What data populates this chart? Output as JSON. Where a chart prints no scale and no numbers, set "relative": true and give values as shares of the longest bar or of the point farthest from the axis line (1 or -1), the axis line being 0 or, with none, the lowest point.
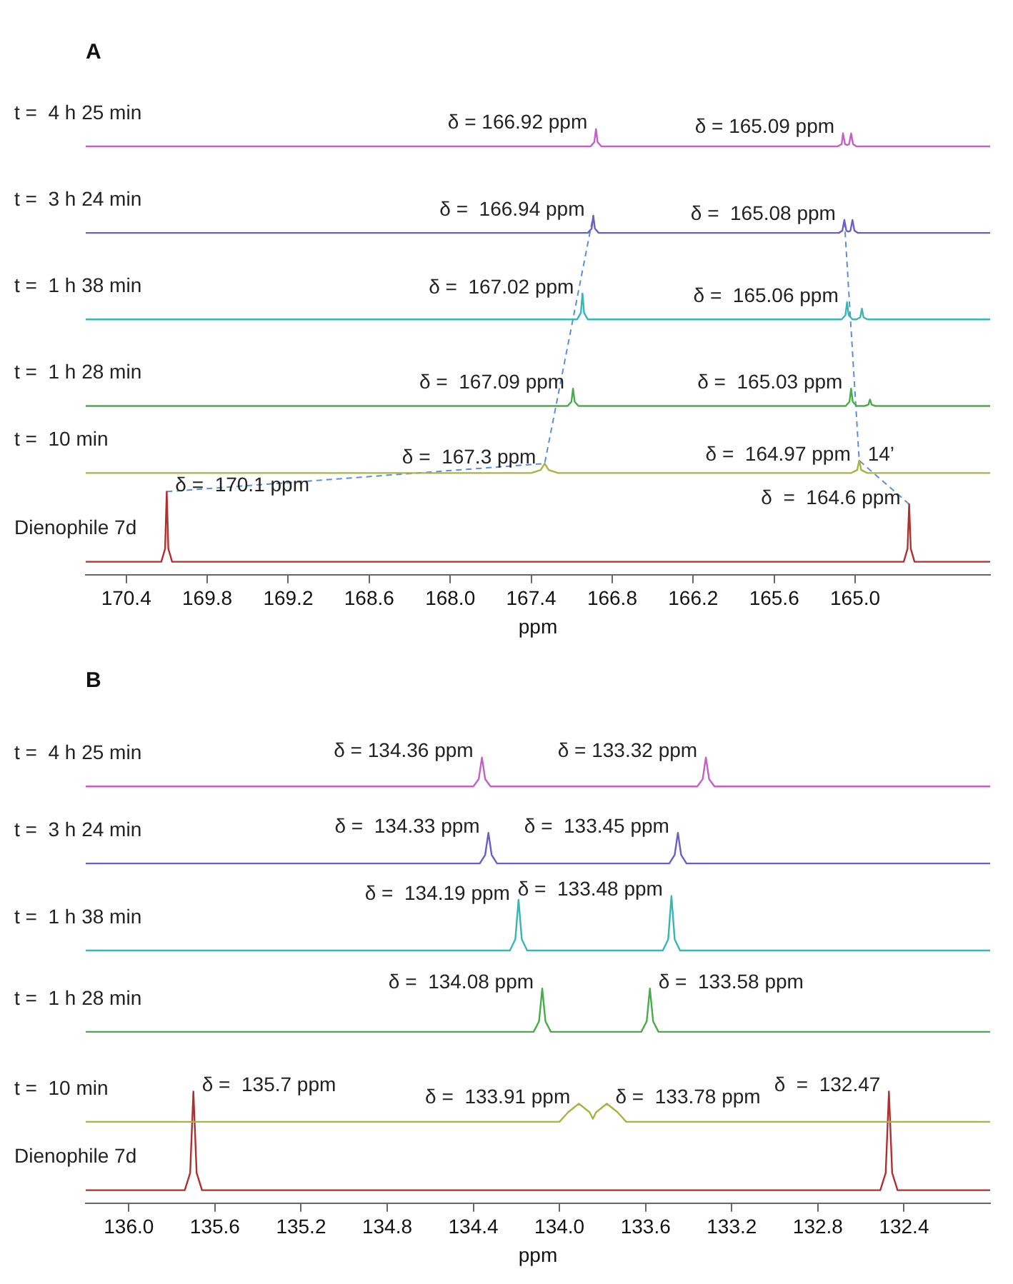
{
  "chart_data": [
    {
      "type": "line",
      "title": "A",
      "xlabel": "ppm",
      "relative": true,
      "xlim": [
        170.7,
        164.0
      ],
      "xticks": [
        170.4,
        169.8,
        169.2,
        168.6,
        {
          "value": 168,
          "label": "168.0"
        },
        167.4,
        166.8,
        166.2,
        165.6,
        {
          "value": 165,
          "label": "165.0"
        }
      ],
      "grid": false,
      "legend": false,
      "tick_labels": "x",
      "marker": "none",
      "line_style": "solid",
      "series": [
        {
          "name": "t =  4 h 25 min",
          "color": "#c65fc6",
          "x": [
            170.7,
            166.96,
            166.932,
            166.92,
            166.908,
            166.88,
            165.13,
            165.1,
            165.09,
            165.075,
            165.06,
            165.045,
            165.03,
            165.015,
            164.99,
            164.0
          ],
          "values": [
            0.96,
            0.96,
            0.97,
            1.0,
            0.97,
            0.96,
            0.96,
            0.965,
            0.99,
            0.965,
            0.963,
            0.965,
            0.99,
            0.965,
            0.96,
            0.96
          ]
        },
        {
          "name": "t =  3 h 24 min",
          "color": "#6a5fc8",
          "x": [
            170.7,
            166.98,
            166.952,
            166.94,
            166.928,
            166.9,
            165.12,
            165.095,
            165.08,
            165.065,
            165.05,
            165.035,
            165.02,
            165.005,
            164.98,
            164.0
          ],
          "values": [
            0.76,
            0.76,
            0.77,
            0.8,
            0.77,
            0.76,
            0.76,
            0.765,
            0.79,
            0.765,
            0.763,
            0.765,
            0.79,
            0.765,
            0.76,
            0.76
          ]
        },
        {
          "name": "t =  1 h 38 min",
          "color": "#3ab5b5",
          "x": [
            170.7,
            167.06,
            167.032,
            167.02,
            167.008,
            166.98,
            165.1,
            165.072,
            165.06,
            165.048,
            165.02,
            164.99,
            164.962,
            164.95,
            164.938,
            164.91,
            164.0
          ],
          "values": [
            0.56,
            0.56,
            0.575,
            0.62,
            0.575,
            0.56,
            0.56,
            0.57,
            0.6,
            0.57,
            0.56,
            0.56,
            0.565,
            0.585,
            0.565,
            0.56,
            0.56
          ]
        },
        {
          "name": "t =  1 h 28 min",
          "color": "#4aab4a",
          "x": [
            170.7,
            167.13,
            167.102,
            167.09,
            167.078,
            167.05,
            165.07,
            165.042,
            165.03,
            165.018,
            164.99,
            164.93,
            164.902,
            164.89,
            164.878,
            164.85,
            164.0
          ],
          "values": [
            0.36,
            0.36,
            0.37,
            0.4,
            0.37,
            0.36,
            0.36,
            0.37,
            0.4,
            0.37,
            0.36,
            0.36,
            0.363,
            0.375,
            0.363,
            0.36,
            0.36
          ]
        },
        {
          "name": "t =  10 min",
          "color": "#a9b440",
          "x": [
            170.7,
            167.4,
            167.33,
            167.3,
            167.27,
            167.2,
            165.03,
            164.985,
            164.97,
            164.955,
            164.91,
            164.0
          ],
          "values": [
            0.205,
            0.205,
            0.212,
            0.227,
            0.212,
            0.205,
            0.205,
            0.212,
            0.234,
            0.212,
            0.205,
            0.205
          ]
        },
        {
          "name": "Dienophile 7d",
          "color": "#b03030",
          "x": [
            170.7,
            170.14,
            170.112,
            170.1,
            170.088,
            170.06,
            164.64,
            164.612,
            164.6,
            164.588,
            164.56,
            164.0
          ],
          "values": [
            0,
            0,
            0.03,
            0.162,
            0.03,
            0,
            0,
            0.03,
            0.133,
            0.03,
            0,
            0
          ]
        },
        {
          "type": "line",
          "line_style": "dashed",
          "color": "#5b8fd5",
          "x": [
            170.1,
            167.3,
            166.94
          ],
          "values": [
            0.162,
            0.227,
            0.8
          ]
        },
        {
          "type": "line",
          "line_style": "dashed",
          "color": "#5b8fd5",
          "x": [
            164.6,
            164.97,
            165.08
          ],
          "values": [
            0.133,
            0.234,
            0.79
          ]
        }
      ],
      "annotations": [
        {
          "text": "δ = 166.92 ppm",
          "x": 166.92,
          "y": 1.0
        },
        {
          "text": "δ = 165.09 ppm",
          "x": 165.09,
          "y": 0.99
        },
        {
          "text": "δ =  166.94 ppm",
          "x": 166.94,
          "y": 0.8
        },
        {
          "text": "δ =  165.08 ppm",
          "x": 165.08,
          "y": 0.79
        },
        {
          "text": "δ =  167.02 ppm",
          "x": 167.02,
          "y": 0.62
        },
        {
          "text": "δ =  165.06 ppm",
          "x": 165.06,
          "y": 0.6
        },
        {
          "text": "δ =  167.09 ppm",
          "x": 167.09,
          "y": 0.4
        },
        {
          "text": "δ =  165.03 ppm",
          "x": 165.03,
          "y": 0.4
        },
        {
          "text": "δ =  167.3 ppm",
          "x": 167.3,
          "y": 0.227
        },
        {
          "text": "δ =  164.97 ppm",
          "x": 164.97,
          "y": 0.234
        },
        {
          "text": "14’",
          "x": 164.97,
          "y": 0.234
        },
        {
          "text": "δ =  170.1 ppm",
          "x": 170.1,
          "y": 0.162
        },
        {
          "text": "δ  =  164.6 ppm",
          "x": 164.6,
          "y": 0.133
        }
      ]
    },
    {
      "type": "line",
      "title": "B",
      "xlabel": "ppm",
      "relative": true,
      "xlim": [
        136.2,
        132.0
      ],
      "xticks": [
        {
          "value": 136,
          "label": "136.0"
        },
        135.6,
        135.2,
        134.8,
        134.4,
        {
          "value": 134,
          "label": "134.0"
        },
        133.6,
        133.2,
        132.8,
        132.4
      ],
      "grid": false,
      "legend": false,
      "tick_labels": "x",
      "marker": "none",
      "line_style": "solid",
      "series": [
        {
          "name": "t =  4 h 25 min",
          "color": "#c65fc6",
          "x": [
            136.2,
            134.4,
            134.375,
            134.36,
            134.345,
            134.32,
            133.36,
            133.335,
            133.32,
            133.305,
            133.28,
            132.0
          ],
          "values": [
            0.933,
            0.933,
            0.95,
            1.0,
            0.95,
            0.933,
            0.933,
            0.95,
            1.0,
            0.95,
            0.933,
            0.933
          ]
        },
        {
          "name": "t =  3 h 24 min",
          "color": "#6a5fc8",
          "x": [
            136.2,
            134.37,
            134.345,
            134.33,
            134.315,
            134.29,
            133.49,
            133.465,
            133.45,
            133.435,
            133.41,
            132.0
          ],
          "values": [
            0.755,
            0.755,
            0.775,
            0.826,
            0.775,
            0.755,
            0.755,
            0.775,
            0.826,
            0.775,
            0.755,
            0.755
          ]
        },
        {
          "name": "t =  1 h 38 min",
          "color": "#3ab5b5",
          "x": [
            136.2,
            134.23,
            134.205,
            134.19,
            134.175,
            134.15,
            133.52,
            133.495,
            133.48,
            133.465,
            133.44,
            132.0
          ],
          "values": [
            0.554,
            0.554,
            0.58,
            0.671,
            0.58,
            0.554,
            0.554,
            0.58,
            0.68,
            0.58,
            0.554,
            0.554
          ]
        },
        {
          "name": "t =  1 h 28 min",
          "color": "#4aab4a",
          "x": [
            136.2,
            134.12,
            134.095,
            134.08,
            134.065,
            134.04,
            133.62,
            133.595,
            133.58,
            133.565,
            133.54,
            132.0
          ],
          "values": [
            0.366,
            0.366,
            0.39,
            0.466,
            0.39,
            0.366,
            0.366,
            0.39,
            0.466,
            0.39,
            0.366,
            0.366
          ]
        },
        {
          "name": "t =  10 min",
          "color": "#a9b440",
          "x": [
            136.2,
            134.0,
            133.96,
            133.91,
            133.86,
            133.845,
            133.83,
            133.78,
            133.73,
            133.69,
            132.0
          ],
          "values": [
            0.158,
            0.158,
            0.18,
            0.2,
            0.18,
            0.165,
            0.18,
            0.2,
            0.18,
            0.158,
            0.158
          ]
        },
        {
          "name": "Dienophile 7d",
          "color": "#b03030",
          "x": [
            136.2,
            135.74,
            135.715,
            135.7,
            135.685,
            135.66,
            132.51,
            132.485,
            132.47,
            132.455,
            132.43,
            132.0
          ],
          "values": [
            0,
            0,
            0.04,
            0.228,
            0.04,
            0,
            0,
            0.04,
            0.228,
            0.04,
            0,
            0
          ]
        }
      ],
      "annotations": [
        {
          "text": "δ = 134.36 ppm",
          "x": 134.36,
          "y": 1.0
        },
        {
          "text": "δ = 133.32 ppm",
          "x": 133.32,
          "y": 1.0
        },
        {
          "text": "δ =  134.33 ppm",
          "x": 134.33,
          "y": 0.826
        },
        {
          "text": "δ =  133.45 ppm",
          "x": 133.45,
          "y": 0.826
        },
        {
          "text": "δ =  134.19 ppm",
          "x": 134.19,
          "y": 0.671
        },
        {
          "text": "δ =  133.48 ppm",
          "x": 133.48,
          "y": 0.68
        },
        {
          "text": "δ =  134.08 ppm",
          "x": 134.08,
          "y": 0.466
        },
        {
          "text": "δ =  133.58 ppm",
          "x": 133.58,
          "y": 0.466
        },
        {
          "text": "δ =  133.91 ppm",
          "x": 133.91,
          "y": 0.2
        },
        {
          "text": "δ =  133.78 ppm",
          "x": 133.78,
          "y": 0.2
        },
        {
          "text": "δ =  135.7 ppm",
          "x": 135.7,
          "y": 0.228
        },
        {
          "text": "δ  =  132.47",
          "x": 132.47,
          "y": 0.228
        }
      ]
    }
  ]
}
